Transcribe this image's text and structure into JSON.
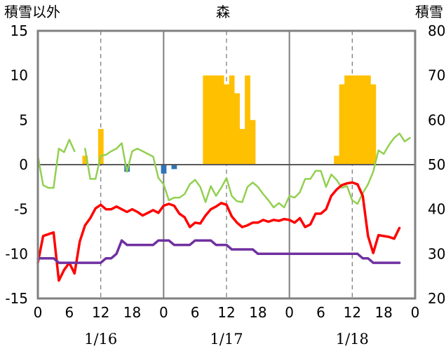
{
  "chart_data": {
    "type": "line",
    "title": "森",
    "left_axis_label": "積雪以外",
    "right_axis_label": "積雪",
    "y_left": {
      "min": -15,
      "max": 15,
      "ticks": [
        15,
        10,
        5,
        0,
        -5,
        -10,
        -15
      ]
    },
    "y_right": {
      "min": 20,
      "max": 80,
      "ticks": [
        80,
        70,
        60,
        50,
        40,
        30,
        20
      ]
    },
    "x": {
      "unit": "hour",
      "min": 0,
      "max": 72,
      "tick_hours": [
        0,
        6,
        12,
        18,
        24,
        30,
        36,
        42,
        48,
        54,
        60,
        66,
        72
      ],
      "tick_labels": [
        "0",
        "6",
        "12",
        "18",
        "0",
        "6",
        "12",
        "18",
        "0",
        "6",
        "12",
        "18",
        "0"
      ],
      "dashed_gridlines_hours": [
        12,
        36,
        60
      ],
      "solid_gridlines_hours": [
        24,
        48
      ],
      "date_labels": [
        {
          "hour": 12,
          "text": "1/16"
        },
        {
          "hour": 36,
          "text": "1/17"
        },
        {
          "hour": 60,
          "text": "1/18"
        }
      ]
    },
    "colors": {
      "snow_fall": "#FFC000",
      "precip": "#2E75B6",
      "temperature": "#FF0000",
      "green_series": "#92D050",
      "snow_depth": "#7030A0"
    },
    "bars_left_axis": [
      {
        "hour": 9,
        "value": 1,
        "color": "#FFC000"
      },
      {
        "hour": 12,
        "value": 4,
        "color": "#FFC000"
      },
      {
        "hour": 17,
        "value": -0.8,
        "color": "#2E75B6"
      },
      {
        "hour": 24,
        "value": -1,
        "color": "#2E75B6"
      },
      {
        "hour": 26,
        "value": -0.5,
        "color": "#2E75B6"
      },
      {
        "hour": 32,
        "value": 10,
        "color": "#FFC000"
      },
      {
        "hour": 33,
        "value": 10,
        "color": "#FFC000"
      },
      {
        "hour": 34,
        "value": 10,
        "color": "#FFC000"
      },
      {
        "hour": 35,
        "value": 10,
        "color": "#FFC000"
      },
      {
        "hour": 36,
        "value": 9,
        "color": "#FFC000"
      },
      {
        "hour": 37,
        "value": 10,
        "color": "#FFC000"
      },
      {
        "hour": 38,
        "value": 8,
        "color": "#FFC000"
      },
      {
        "hour": 39,
        "value": 4,
        "color": "#FFC000"
      },
      {
        "hour": 40,
        "value": 10,
        "color": "#FFC000"
      },
      {
        "hour": 41,
        "value": 5,
        "color": "#FFC000"
      },
      {
        "hour": 57,
        "value": 1,
        "color": "#FFC000"
      },
      {
        "hour": 58,
        "value": 9,
        "color": "#FFC000"
      },
      {
        "hour": 59,
        "value": 10,
        "color": "#FFC000"
      },
      {
        "hour": 60,
        "value": 10,
        "color": "#FFC000"
      },
      {
        "hour": 61,
        "value": 10,
        "color": "#FFC000"
      },
      {
        "hour": 62,
        "value": 10,
        "color": "#FFC000"
      },
      {
        "hour": 63,
        "value": 10,
        "color": "#FFC000"
      },
      {
        "hour": 64,
        "value": 9,
        "color": "#FFC000"
      }
    ],
    "series": [
      {
        "axis": "left",
        "color": "#92D050",
        "width": 2.5,
        "segments": [
          [
            [
              0,
              1
            ],
            [
              1,
              -2.3
            ],
            [
              2,
              -2.6
            ],
            [
              3,
              -2.6
            ],
            [
              4,
              1.8
            ],
            [
              5,
              1.4
            ],
            [
              6,
              2.8
            ],
            [
              7,
              1.5
            ]
          ],
          [
            [
              9,
              1.8
            ],
            [
              10,
              -1.6
            ],
            [
              11,
              -1.6
            ],
            [
              12,
              1
            ],
            [
              13,
              1.1
            ],
            [
              14,
              1.5
            ],
            [
              15,
              1.8
            ],
            [
              16,
              2.4
            ],
            [
              17,
              -0.8
            ],
            [
              18,
              1.5
            ],
            [
              19,
              1.8
            ],
            [
              20,
              1.5
            ],
            [
              21,
              1.2
            ],
            [
              22,
              0.9
            ],
            [
              23,
              -1.5
            ],
            [
              24,
              -2.2
            ],
            [
              25,
              -4
            ],
            [
              26,
              -3.7
            ],
            [
              27,
              -3.7
            ],
            [
              28,
              -3.3
            ],
            [
              29,
              -2.2
            ],
            [
              30,
              -1.7
            ],
            [
              31,
              -2.5
            ],
            [
              32,
              -4.2
            ],
            [
              33,
              -2.4
            ],
            [
              34,
              -3.5
            ],
            [
              35,
              -2.6
            ],
            [
              36,
              -1.5
            ],
            [
              37,
              -3.5
            ],
            [
              38,
              -4.1
            ],
            [
              39,
              -4.2
            ],
            [
              40,
              -2.5
            ],
            [
              41,
              -2
            ],
            [
              42,
              -2.5
            ],
            [
              43,
              -3.3
            ],
            [
              44,
              -4
            ],
            [
              45,
              -4.8
            ],
            [
              46,
              -4.3
            ],
            [
              47,
              -4.8
            ],
            [
              48,
              -3.5
            ],
            [
              49,
              -3.7
            ],
            [
              50,
              -3.1
            ],
            [
              51,
              -1.6
            ],
            [
              52,
              -1.6
            ],
            [
              53,
              -0.7
            ],
            [
              54,
              -0.7
            ],
            [
              55,
              -2.5
            ],
            [
              56,
              -1.1
            ],
            [
              57,
              -1.7
            ],
            [
              58,
              -2.6
            ],
            [
              59,
              -2.4
            ],
            [
              60,
              -4
            ],
            [
              61,
              -4.4
            ],
            [
              62,
              -3.2
            ],
            [
              63,
              -2.2
            ],
            [
              64,
              -0.8
            ],
            [
              65,
              1.6
            ],
            [
              66,
              1.2
            ],
            [
              67,
              2.2
            ],
            [
              68,
              3
            ],
            [
              69,
              3.5
            ],
            [
              70,
              2.6
            ],
            [
              71,
              3
            ]
          ]
        ]
      },
      {
        "axis": "left",
        "color": "#FF0000",
        "width": 3.5,
        "segments": [
          [
            [
              0,
              -11
            ],
            [
              1,
              -8
            ],
            [
              2,
              -7.8
            ],
            [
              3,
              -7.6
            ],
            [
              4,
              -13
            ],
            [
              5,
              -11.8
            ],
            [
              6,
              -11
            ],
            [
              7,
              -12.2
            ],
            [
              8,
              -8.6
            ],
            [
              9,
              -6.8
            ],
            [
              10,
              -6
            ],
            [
              11,
              -4.9
            ],
            [
              12,
              -4.5
            ],
            [
              13,
              -5
            ],
            [
              14,
              -5
            ],
            [
              15,
              -4.7
            ],
            [
              16,
              -5
            ],
            [
              17,
              -5.3
            ],
            [
              18,
              -5
            ],
            [
              19,
              -5.3
            ],
            [
              20,
              -5.7
            ],
            [
              21,
              -5.4
            ],
            [
              22,
              -5.1
            ],
            [
              23,
              -5.4
            ],
            [
              24,
              -4.6
            ],
            [
              25,
              -4.4
            ],
            [
              26,
              -4.6
            ],
            [
              27,
              -5.5
            ],
            [
              28,
              -5.9
            ],
            [
              29,
              -7
            ],
            [
              30,
              -6.5
            ],
            [
              31,
              -6.6
            ],
            [
              32,
              -5.7
            ],
            [
              33,
              -5
            ],
            [
              34,
              -4.7
            ],
            [
              35,
              -4.3
            ],
            [
              36,
              -4.5
            ],
            [
              37,
              -5.8
            ],
            [
              38,
              -6.5
            ],
            [
              39,
              -7
            ],
            [
              40,
              -6.8
            ],
            [
              41,
              -6.5
            ],
            [
              42,
              -6.5
            ],
            [
              43,
              -6.2
            ],
            [
              44,
              -6.4
            ],
            [
              45,
              -6.2
            ],
            [
              46,
              -6.3
            ],
            [
              47,
              -6.1
            ],
            [
              48,
              -6.2
            ],
            [
              49,
              -6.5
            ],
            [
              50,
              -6
            ],
            [
              51,
              -7
            ],
            [
              52,
              -6.7
            ],
            [
              53,
              -5.5
            ],
            [
              54,
              -5.5
            ],
            [
              55,
              -5
            ],
            [
              56,
              -3.5
            ],
            [
              57,
              -2.8
            ],
            [
              58,
              -2.3
            ],
            [
              59,
              -2.1
            ],
            [
              60,
              -2
            ],
            [
              61,
              -2.2
            ],
            [
              62,
              -3.5
            ],
            [
              63,
              -8
            ],
            [
              64,
              -9.9
            ],
            [
              65,
              -7.9
            ],
            [
              66,
              -8
            ],
            [
              67,
              -8.1
            ],
            [
              68,
              -8.3
            ],
            [
              69,
              -7.1
            ]
          ]
        ]
      },
      {
        "axis": "right",
        "color": "#7030A0",
        "width": 3.5,
        "segments": [
          [
            [
              0,
              29
            ],
            [
              1,
              29
            ],
            [
              2,
              29
            ],
            [
              3,
              29
            ],
            [
              4,
              28
            ],
            [
              5,
              28
            ],
            [
              6,
              28
            ],
            [
              7,
              28
            ],
            [
              8,
              28
            ],
            [
              9,
              28
            ],
            [
              10,
              28
            ],
            [
              11,
              28
            ],
            [
              12,
              28
            ],
            [
              13,
              29
            ],
            [
              14,
              29
            ],
            [
              15,
              30
            ],
            [
              16,
              33
            ],
            [
              17,
              32
            ],
            [
              18,
              32
            ],
            [
              19,
              32
            ],
            [
              20,
              32
            ],
            [
              21,
              32
            ],
            [
              22,
              32
            ],
            [
              23,
              33
            ],
            [
              24,
              33
            ],
            [
              25,
              33
            ],
            [
              26,
              32
            ],
            [
              27,
              32
            ],
            [
              28,
              32
            ],
            [
              29,
              32
            ],
            [
              30,
              33
            ],
            [
              31,
              33
            ],
            [
              32,
              33
            ],
            [
              33,
              33
            ],
            [
              34,
              32
            ],
            [
              35,
              32
            ],
            [
              36,
              32
            ],
            [
              37,
              31
            ],
            [
              38,
              31
            ],
            [
              39,
              31
            ],
            [
              40,
              31
            ],
            [
              41,
              31
            ],
            [
              42,
              30
            ],
            [
              43,
              30
            ],
            [
              44,
              30
            ],
            [
              45,
              30
            ],
            [
              46,
              30
            ],
            [
              47,
              30
            ],
            [
              48,
              30
            ],
            [
              49,
              30
            ],
            [
              50,
              30
            ],
            [
              51,
              30
            ],
            [
              52,
              30
            ],
            [
              53,
              30
            ],
            [
              54,
              30
            ],
            [
              55,
              30
            ],
            [
              56,
              30
            ],
            [
              57,
              30
            ],
            [
              58,
              30
            ],
            [
              59,
              30
            ],
            [
              60,
              30
            ],
            [
              61,
              30
            ],
            [
              62,
              29
            ],
            [
              63,
              29
            ],
            [
              64,
              28
            ],
            [
              65,
              28
            ],
            [
              66,
              28
            ],
            [
              67,
              28
            ],
            [
              68,
              28
            ],
            [
              69,
              28
            ]
          ]
        ]
      }
    ]
  }
}
